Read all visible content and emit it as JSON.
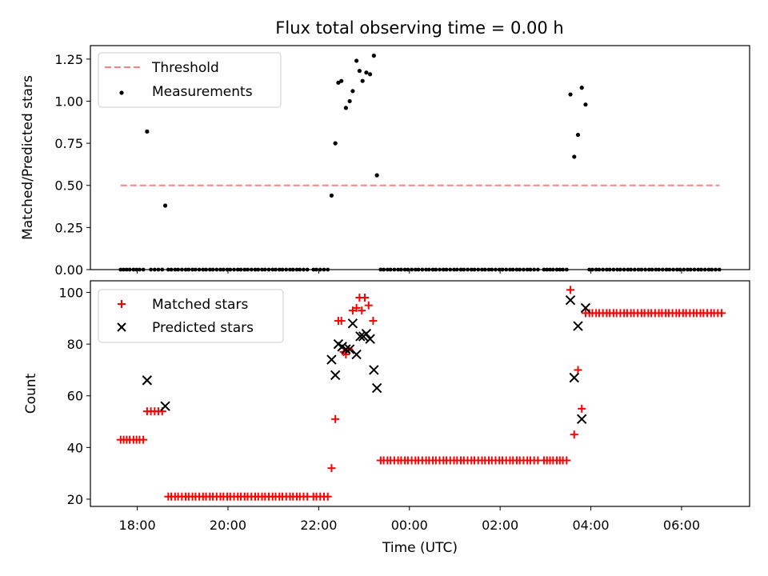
{
  "chart_data": [
    {
      "type": "scatter",
      "title": "Flux total observing time = 0.00 h",
      "xlabel": "",
      "ylabel": "Matched/Predicted stars",
      "xlim": [
        "2023-01-01T16:58",
        "2023-01-02T07:30"
      ],
      "ylim": [
        0,
        1.33
      ],
      "yticks": [
        "0.00",
        "0.25",
        "0.50",
        "0.75",
        "1.00",
        "1.25"
      ],
      "grid": false,
      "legend": "top-left",
      "colors": {
        "threshold": "#ff8080",
        "measurements": "#000000"
      },
      "threshold": {
        "name": "Threshold",
        "value": 0.5,
        "x": [
          "2023-01-01T17:38",
          "2023-01-02T06:50"
        ]
      },
      "measurements": {
        "name": "Measurements",
        "points": [
          [
            "2023-01-01T18:13",
            0.82
          ],
          [
            "2023-01-01T18:37",
            0.38
          ],
          [
            "2023-01-01T22:17",
            0.44
          ],
          [
            "2023-01-01T22:22",
            0.75
          ],
          [
            "2023-01-01T22:26",
            1.11
          ],
          [
            "2023-01-01T22:30",
            1.12
          ],
          [
            "2023-01-01T22:36",
            0.96
          ],
          [
            "2023-01-01T22:41",
            1.0
          ],
          [
            "2023-01-01T22:45",
            1.06
          ],
          [
            "2023-01-01T22:50",
            1.24
          ],
          [
            "2023-01-01T22:54",
            1.18
          ],
          [
            "2023-01-01T22:58",
            1.12
          ],
          [
            "2023-01-01T23:03",
            1.17
          ],
          [
            "2023-01-01T23:08",
            1.16
          ],
          [
            "2023-01-01T23:13",
            1.27
          ],
          [
            "2023-01-01T23:17",
            0.56
          ],
          [
            "2023-01-02T03:33",
            1.04
          ],
          [
            "2023-01-02T03:38",
            0.67
          ],
          [
            "2023-01-02T03:43",
            0.8
          ],
          [
            "2023-01-02T03:48",
            1.08
          ],
          [
            "2023-01-02T03:53",
            0.98
          ]
        ],
        "zero_ranges": [
          [
            "2023-01-01T17:38",
            "2023-01-01T18:08"
          ],
          [
            "2023-01-01T18:18",
            "2023-01-01T18:33"
          ],
          [
            "2023-01-01T18:41",
            "2023-01-01T21:45"
          ],
          [
            "2023-01-01T21:53",
            "2023-01-01T22:12"
          ],
          [
            "2023-01-01T23:22",
            "2023-01-02T02:50"
          ],
          [
            "2023-01-02T02:58",
            "2023-01-02T03:28"
          ],
          [
            "2023-01-02T03:58",
            "2023-01-02T06:50"
          ]
        ]
      }
    },
    {
      "type": "scatter",
      "title": "",
      "xlabel": "Time (UTC)",
      "ylabel": "Count",
      "xlim": [
        "2023-01-01T16:58",
        "2023-01-02T07:30"
      ],
      "ylim": [
        17.2,
        104.5
      ],
      "yticks": [
        "20",
        "40",
        "60",
        "80",
        "100"
      ],
      "xticks": [
        "18:00",
        "20:00",
        "22:00",
        "00:00",
        "02:00",
        "04:00",
        "06:00"
      ],
      "xtick_times": [
        "2023-01-01T18:00",
        "2023-01-01T20:00",
        "2023-01-01T22:00",
        "2023-01-02T00:00",
        "2023-01-02T02:00",
        "2023-01-02T04:00",
        "2023-01-02T06:00"
      ],
      "grid": false,
      "legend": "top-left",
      "colors": {
        "matched": "#ff0000",
        "predicted": "#000000"
      },
      "matched": {
        "name": "Matched stars",
        "segments": [
          {
            "from": "2023-01-01T17:38",
            "to": "2023-01-01T18:08",
            "value": 43
          },
          {
            "from": "2023-01-01T18:13",
            "to": "2023-01-01T18:33",
            "value": 54
          },
          {
            "from": "2023-01-01T18:41",
            "to": "2023-01-01T21:45",
            "value": 21
          },
          {
            "from": "2023-01-01T21:53",
            "to": "2023-01-01T22:12",
            "value": 21
          },
          {
            "from": "2023-01-01T23:22",
            "to": "2023-01-02T02:50",
            "value": 35
          },
          {
            "from": "2023-01-02T02:58",
            "to": "2023-01-02T03:28",
            "value": 35
          },
          {
            "from": "2023-01-02T03:58",
            "to": "2023-01-02T06:53",
            "value": 92
          }
        ],
        "points": [
          [
            "2023-01-01T22:17",
            32
          ],
          [
            "2023-01-01T22:22",
            51
          ],
          [
            "2023-01-01T22:26",
            89
          ],
          [
            "2023-01-01T22:30",
            89
          ],
          [
            "2023-01-01T22:33",
            77
          ],
          [
            "2023-01-01T22:36",
            76
          ],
          [
            "2023-01-01T22:40",
            78
          ],
          [
            "2023-01-01T22:45",
            93
          ],
          [
            "2023-01-01T22:50",
            94
          ],
          [
            "2023-01-01T22:54",
            98
          ],
          [
            "2023-01-01T22:57",
            93
          ],
          [
            "2023-01-01T23:01",
            98
          ],
          [
            "2023-01-01T23:06",
            95
          ],
          [
            "2023-01-01T23:12",
            89
          ],
          [
            "2023-01-02T03:33",
            101
          ],
          [
            "2023-01-02T03:38",
            45
          ],
          [
            "2023-01-02T03:43",
            70
          ],
          [
            "2023-01-02T03:48",
            55
          ],
          [
            "2023-01-02T03:53",
            92
          ]
        ]
      },
      "predicted": {
        "name": "Predicted stars",
        "points": [
          [
            "2023-01-01T18:13",
            66
          ],
          [
            "2023-01-01T18:37",
            56
          ],
          [
            "2023-01-01T22:17",
            74
          ],
          [
            "2023-01-01T22:22",
            68
          ],
          [
            "2023-01-01T22:26",
            80
          ],
          [
            "2023-01-01T22:31",
            79
          ],
          [
            "2023-01-01T22:36",
            78
          ],
          [
            "2023-01-01T22:41",
            78
          ],
          [
            "2023-01-01T22:45",
            88
          ],
          [
            "2023-01-01T22:50",
            76
          ],
          [
            "2023-01-01T22:55",
            83
          ],
          [
            "2023-01-01T22:59",
            83
          ],
          [
            "2023-01-01T23:03",
            84
          ],
          [
            "2023-01-01T23:08",
            82
          ],
          [
            "2023-01-01T23:13",
            70
          ],
          [
            "2023-01-01T23:17",
            63
          ],
          [
            "2023-01-02T03:33",
            97
          ],
          [
            "2023-01-02T03:38",
            67
          ],
          [
            "2023-01-02T03:43",
            87
          ],
          [
            "2023-01-02T03:48",
            51
          ],
          [
            "2023-01-02T03:53",
            94
          ]
        ]
      }
    }
  ]
}
